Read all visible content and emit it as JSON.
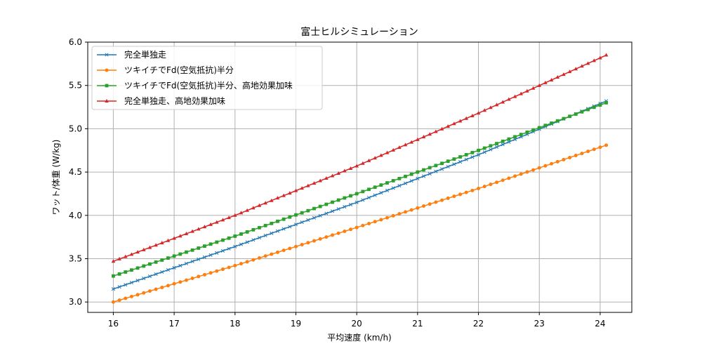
{
  "chart_data": {
    "type": "line",
    "title": "富士ヒルシミュレーション",
    "xlabel": "平均速度 (km/h)",
    "ylabel": "ワット/体重 (W/kg)",
    "xlim": [
      15.58,
      24.52
    ],
    "ylim": [
      2.88,
      6.0
    ],
    "x_start": 16.0,
    "x_end": 24.1,
    "x_step": 0.1,
    "xticks": [
      16,
      17,
      18,
      19,
      20,
      21,
      22,
      23,
      24
    ],
    "yticks": [
      "3.0",
      "3.5",
      "4.0",
      "4.5",
      "5.0",
      "5.5",
      "6.0"
    ],
    "grid": true,
    "legend_position": "upper-left",
    "series": [
      {
        "name": "完全単独走",
        "color": "#1f77b4",
        "marker": "x",
        "y_at": [
          [
            16,
            3.15
          ],
          [
            18,
            3.64
          ],
          [
            20,
            4.15
          ],
          [
            22,
            4.7
          ],
          [
            24.1,
            5.32
          ]
        ]
      },
      {
        "name": "ツキイチでFd(空気抵抗)半分",
        "color": "#ff7f0e",
        "marker": "o",
        "y_at": [
          [
            16,
            3.0
          ],
          [
            18,
            3.42
          ],
          [
            20,
            3.86
          ],
          [
            22,
            4.31
          ],
          [
            24.1,
            4.81
          ]
        ]
      },
      {
        "name": "ツキイチでFd(空気抵抗)半分、高地効果加味",
        "color": "#2ca02c",
        "marker": "s",
        "y_at": [
          [
            16,
            3.3
          ],
          [
            18,
            3.76
          ],
          [
            20,
            4.25
          ],
          [
            22,
            4.75
          ],
          [
            24.1,
            5.3
          ]
        ]
      },
      {
        "name": "完全単独走、高地効果加味",
        "color": "#d62728",
        "marker": "^",
        "y_at": [
          [
            16,
            3.47
          ],
          [
            18,
            4.0
          ],
          [
            20,
            4.57
          ],
          [
            22,
            5.18
          ],
          [
            24.1,
            5.85
          ]
        ]
      }
    ]
  }
}
